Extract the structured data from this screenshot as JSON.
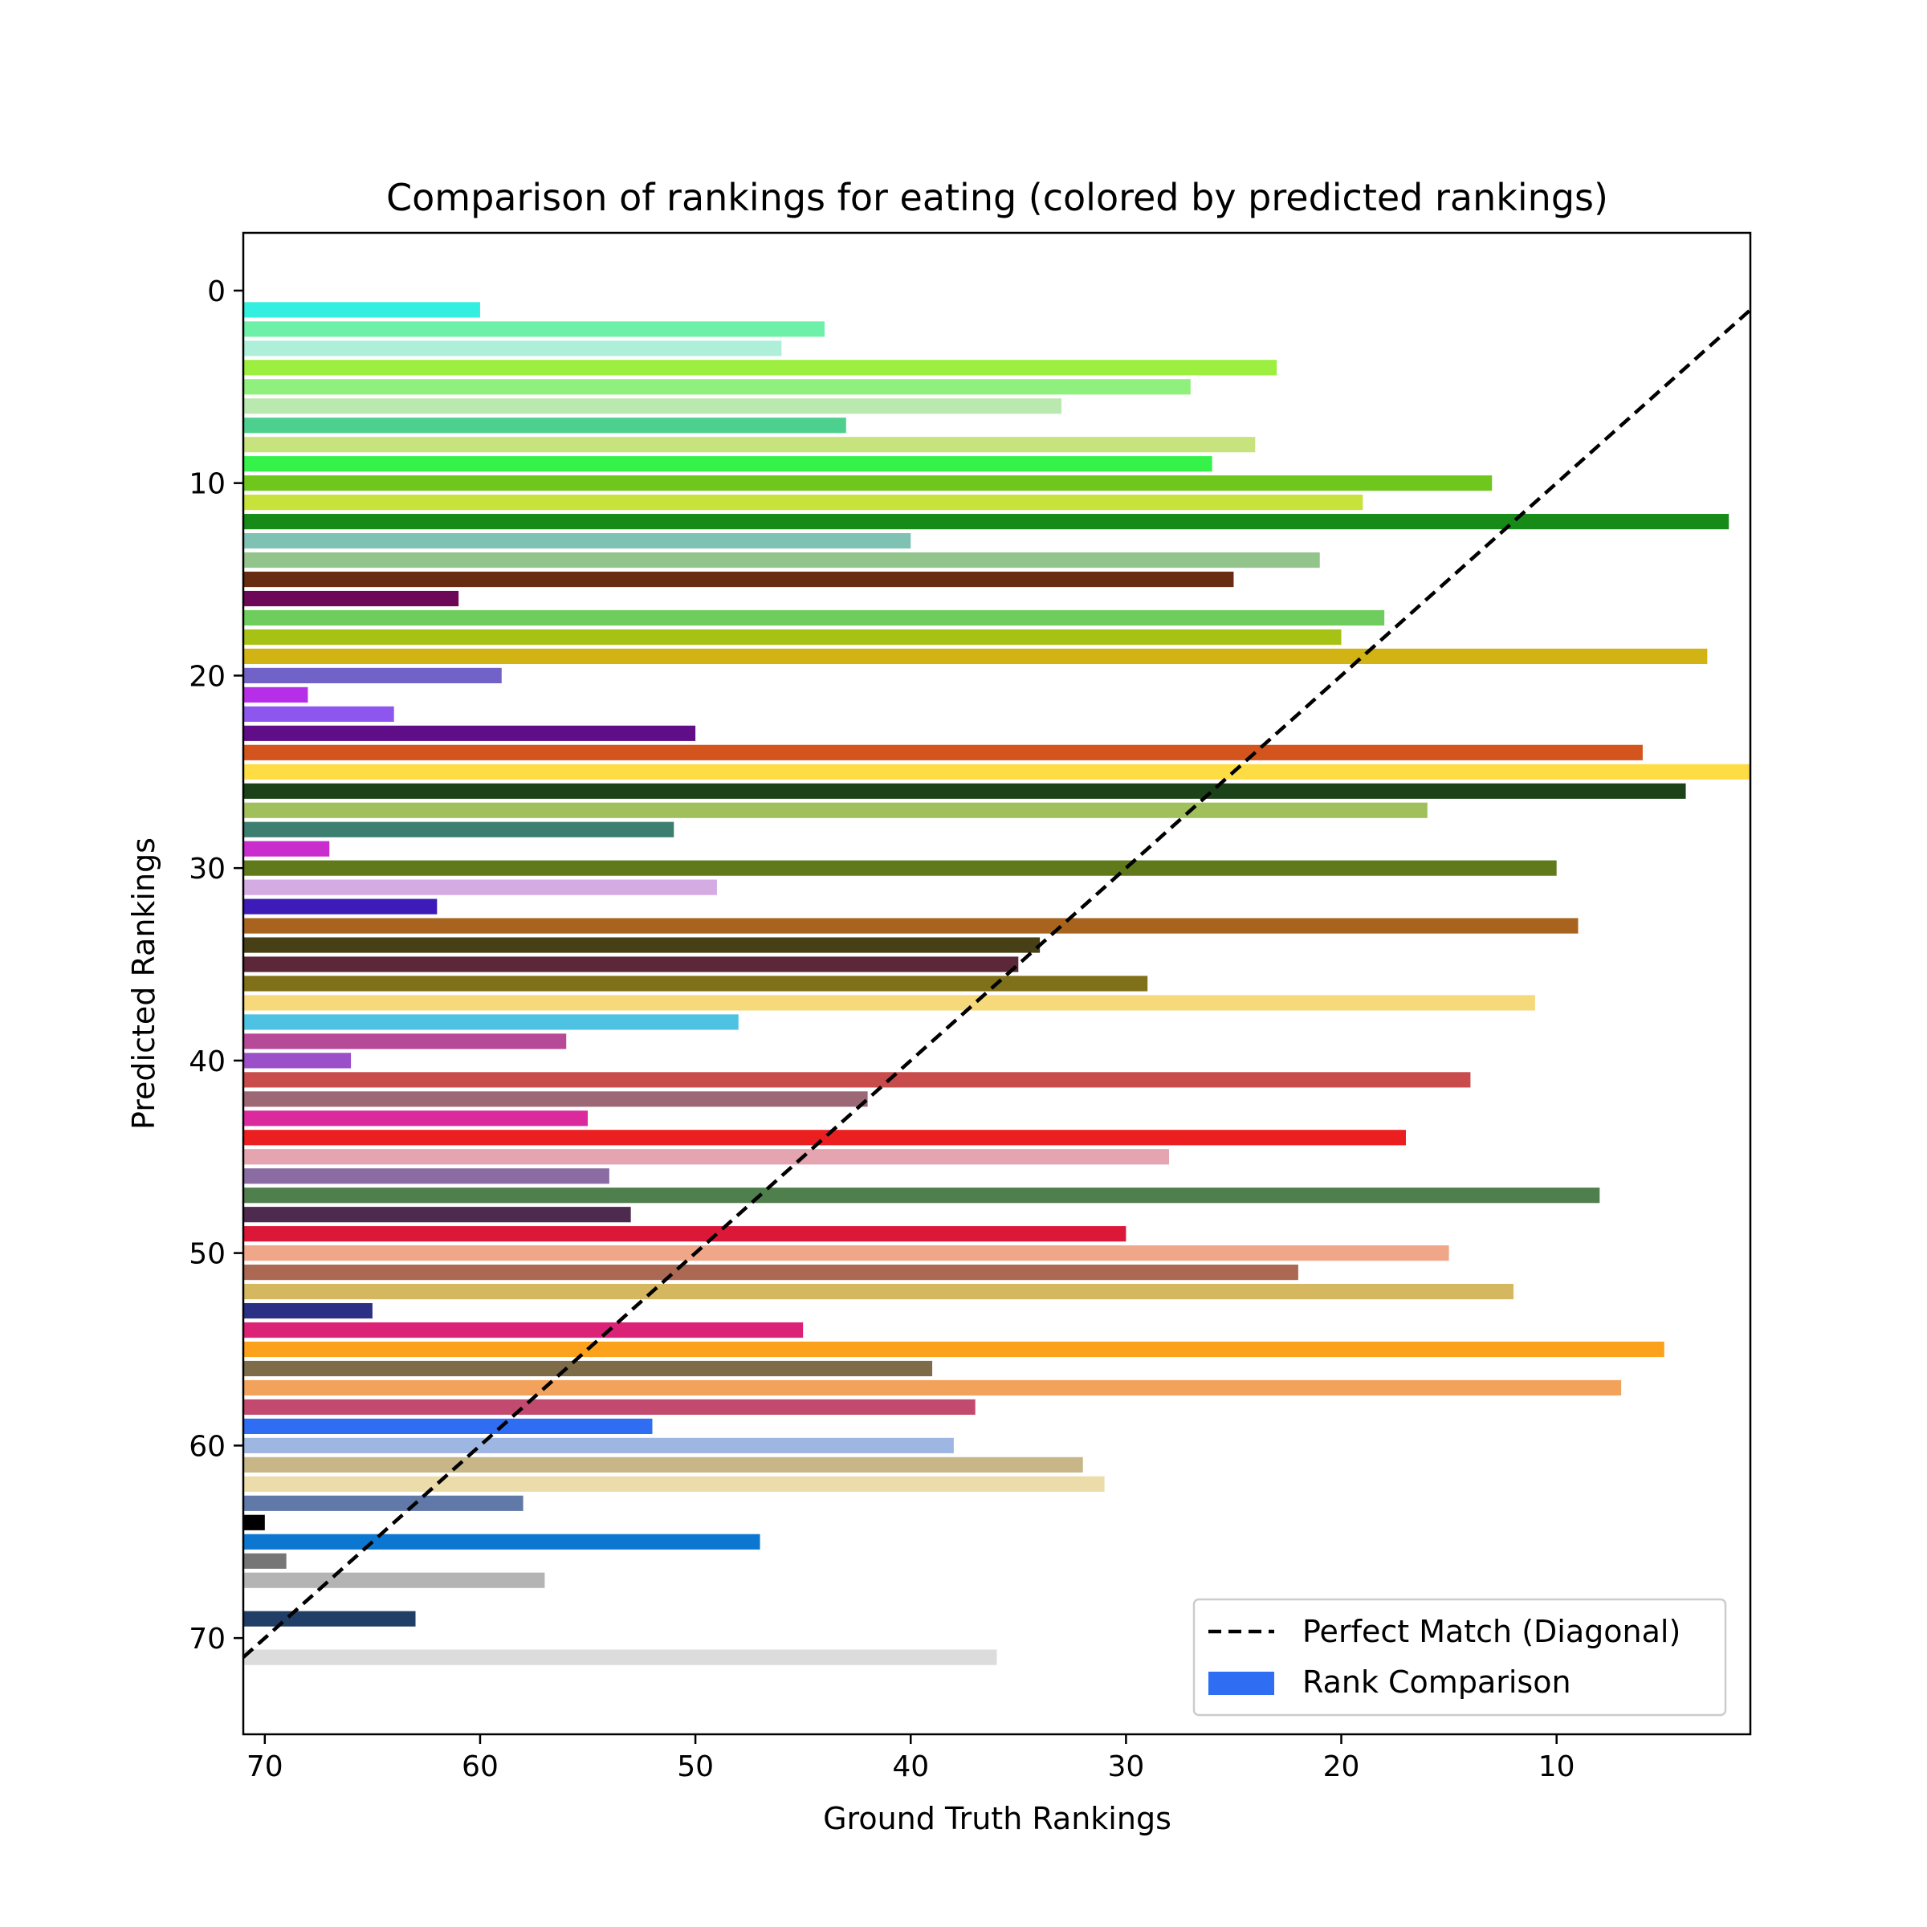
{
  "chart_data": {
    "type": "bar",
    "orientation": "horizontal",
    "title": "Comparison of rankings for eating (colored by predicted rankings)",
    "xlabel": "Ground Truth Rankings",
    "ylabel": "Predicted Rankings",
    "xlim": [
      71,
      1
    ],
    "ylim": [
      75,
      -3
    ],
    "x_ticks": [
      70,
      60,
      50,
      40,
      30,
      20,
      10
    ],
    "y_ticks": [
      0,
      10,
      20,
      30,
      40,
      50,
      60,
      70
    ],
    "grid": false,
    "legend_position": "lower-right",
    "legend": [
      {
        "label": "Perfect Match (Diagonal)",
        "kind": "dashed-line",
        "color": "#000000"
      },
      {
        "label": "Rank Comparison",
        "kind": "patch",
        "color": "#2f6ef2"
      }
    ],
    "diagonal": {
      "from": [
        71,
        71
      ],
      "to": [
        1,
        1
      ]
    },
    "series": [
      {
        "name": "Rank Comparison",
        "predicted": [
          1,
          2,
          3,
          4,
          5,
          6,
          7,
          8,
          9,
          10,
          11,
          12,
          13,
          14,
          15,
          16,
          17,
          18,
          19,
          20,
          21,
          22,
          23,
          24,
          25,
          26,
          27,
          28,
          29,
          30,
          31,
          32,
          33,
          34,
          35,
          36,
          37,
          38,
          39,
          40,
          41,
          42,
          43,
          44,
          45,
          46,
          47,
          48,
          49,
          50,
          51,
          52,
          53,
          54,
          55,
          56,
          57,
          58,
          59,
          60,
          61,
          62,
          63,
          64,
          65,
          66,
          67,
          69,
          71
        ],
        "ground_truth": [
          60,
          44,
          46,
          23,
          27,
          33,
          43,
          24,
          26,
          13,
          19,
          2,
          40,
          21,
          25,
          61,
          18,
          20,
          3,
          59,
          68,
          64,
          50,
          6,
          1,
          4,
          16,
          51,
          67,
          10,
          49,
          62,
          9,
          34,
          35,
          29,
          11,
          48,
          56,
          66,
          14,
          42,
          55,
          17,
          28,
          54,
          8,
          53,
          30,
          15,
          22,
          12,
          65,
          45,
          5,
          39,
          7,
          37,
          52,
          38,
          32,
          31,
          58,
          70,
          47,
          69,
          57,
          63,
          36
        ],
        "colors": [
          "#33efe0",
          "#6ff0a8",
          "#aeefda",
          "#9cee3f",
          "#8ff07d",
          "#b9e9ae",
          "#4dd08e",
          "#c7e37d",
          "#35f24b",
          "#6fc71d",
          "#c7e23a",
          "#168b18",
          "#7fc2b3",
          "#93c48c",
          "#682c12",
          "#6d0859",
          "#6ecd5c",
          "#a7c214",
          "#d2b314",
          "#7062c6",
          "#b72ee8",
          "#8c56ef",
          "#600e87",
          "#d4541e",
          "#fedc44",
          "#1b4219",
          "#a0c05c",
          "#3c7f71",
          "#c92dcd",
          "#5f791b",
          "#d4abe2",
          "#3d1bb9",
          "#a8641e",
          "#473f16",
          "#5b2739",
          "#7f7019",
          "#f5d97a",
          "#4dc2e2",
          "#b64998",
          "#9b4fc9",
          "#c84c4b",
          "#9d6876",
          "#da2a9e",
          "#eb1f1f",
          "#e4a4b0",
          "#8a6ba2",
          "#4f7f4c",
          "#4d2a4e",
          "#dc1839",
          "#f0a688",
          "#ab6852",
          "#d5b760",
          "#2c3085",
          "#db2277",
          "#fba11b",
          "#7e6c49",
          "#f2a25b",
          "#c24a6e",
          "#2f6ef2",
          "#9eb6e2",
          "#c8b689",
          "#ecdcaa",
          "#6179a8",
          "#000000",
          "#0c77d1",
          "#767676",
          "#b4b4b4",
          "#213f66",
          "#dcdcdc"
        ]
      }
    ]
  }
}
